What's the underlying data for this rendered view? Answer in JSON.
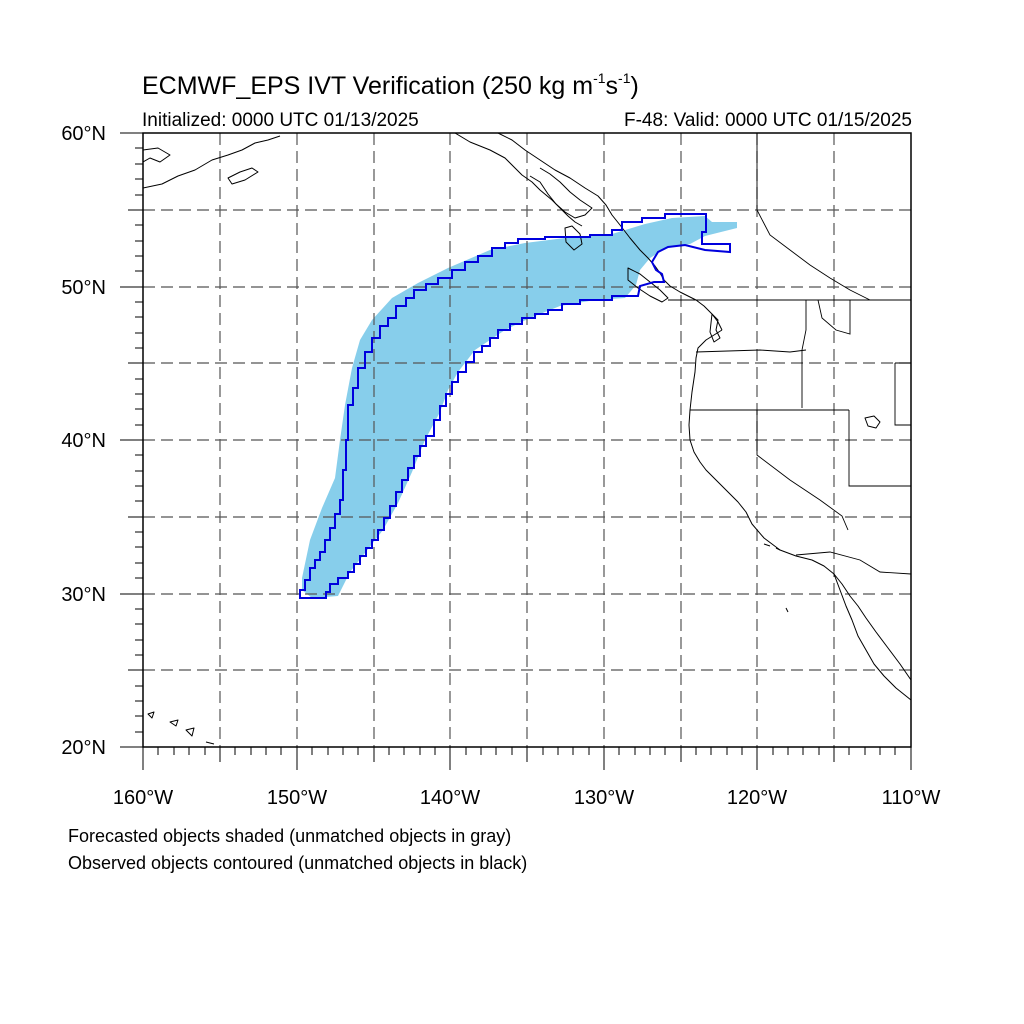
{
  "title": {
    "text_before": "ECMWF_EPS IVT Verification (250 kg m",
    "exp1": "-1",
    "mid": "s",
    "exp2": "-1",
    "text_after": ")"
  },
  "initialized": "Initialized: 0000 UTC 01/13/2025",
  "valid": "F-48: Valid: 0000 UTC 01/15/2025",
  "lat_labels": [
    "60°N",
    "50°N",
    "40°N",
    "30°N",
    "20°N"
  ],
  "lon_labels": [
    "160°W",
    "150°W",
    "140°W",
    "130°W",
    "120°W",
    "110°W"
  ],
  "notes": {
    "forecast": "Forecasted objects shaded (unmatched objects in gray)",
    "observed": "Observed objects contoured (unmatched objects in black)"
  },
  "colors": {
    "forecast_fill": "#87ceeb",
    "observed_contour": "#0000dd",
    "grid": "#555555",
    "coast": "#000000"
  }
}
